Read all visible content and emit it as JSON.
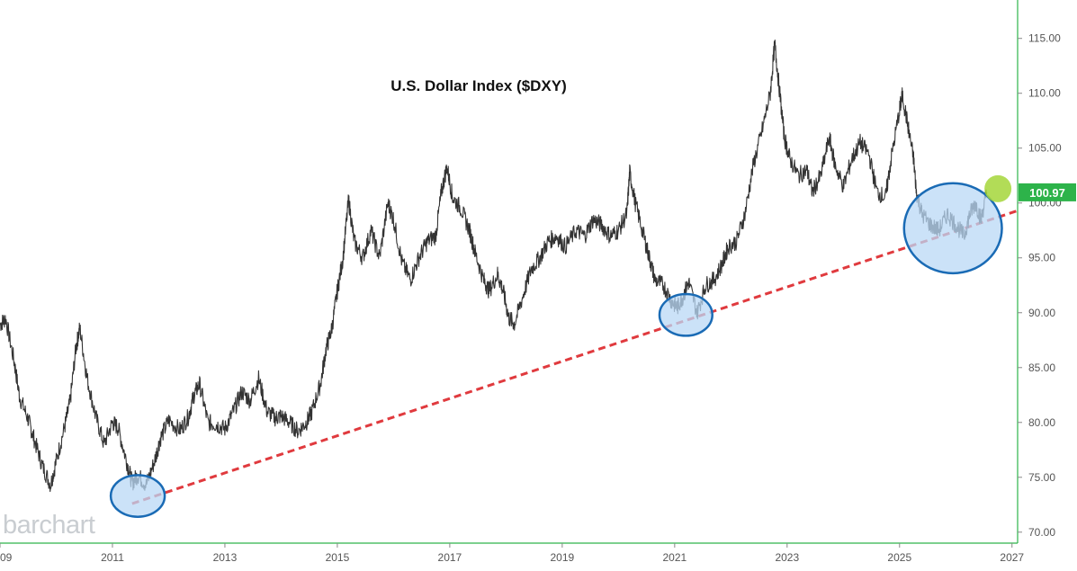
{
  "chart_data": {
    "type": "line",
    "title": "U.S. Dollar Index ($DXY)",
    "xlabel": "",
    "ylabel": "",
    "xlim": [
      2009.0,
      2027.1
    ],
    "ylim": [
      69.0,
      118.5
    ],
    "x_ticks": [
      "09",
      "2011",
      "2013",
      "2015",
      "2017",
      "2019",
      "2021",
      "2023",
      "2025",
      "2027"
    ],
    "y_ticks": [
      "70.00",
      "75.00",
      "80.00",
      "85.00",
      "90.00",
      "95.00",
      "100.00",
      "105.00",
      "110.00",
      "115.00"
    ],
    "last_price_label": "100.97",
    "grid": false,
    "colors": {
      "price": "#333333",
      "trendline": "#e03a3e",
      "price_badge": "#2db34a",
      "highlight_fill": "#b9d8f5",
      "highlight_stroke": "#1a6bb5",
      "current_marker": "#a4d63a"
    },
    "series": [
      {
        "values": [
          [
            2009.0,
            88.9
          ],
          [
            2009.1,
            89.5
          ],
          [
            2009.25,
            85.6
          ],
          [
            2009.35,
            82.3
          ],
          [
            2009.5,
            80.3
          ],
          [
            2009.6,
            78.6
          ],
          [
            2009.75,
            76.1
          ],
          [
            2009.9,
            74.3
          ],
          [
            2010.0,
            76.5
          ],
          [
            2010.15,
            79.6
          ],
          [
            2010.25,
            82.0
          ],
          [
            2010.35,
            86.8
          ],
          [
            2010.42,
            88.6
          ],
          [
            2010.55,
            84.0
          ],
          [
            2010.7,
            80.6
          ],
          [
            2010.85,
            78.0
          ],
          [
            2011.0,
            80.0
          ],
          [
            2011.1,
            79.5
          ],
          [
            2011.25,
            76.5
          ],
          [
            2011.35,
            74.5
          ],
          [
            2011.45,
            75.2
          ],
          [
            2011.6,
            74.3
          ],
          [
            2011.75,
            76.5
          ],
          [
            2011.85,
            78.5
          ],
          [
            2012.0,
            80.2
          ],
          [
            2012.2,
            79.3
          ],
          [
            2012.35,
            80.5
          ],
          [
            2012.45,
            82.5
          ],
          [
            2012.55,
            83.5
          ],
          [
            2012.7,
            80.0
          ],
          [
            2012.85,
            79.8
          ],
          [
            2013.0,
            79.4
          ],
          [
            2013.15,
            81.0
          ],
          [
            2013.3,
            82.8
          ],
          [
            2013.45,
            82.0
          ],
          [
            2013.6,
            84.0
          ],
          [
            2013.75,
            81.0
          ],
          [
            2013.9,
            80.4
          ],
          [
            2014.0,
            80.6
          ],
          [
            2014.15,
            80.0
          ],
          [
            2014.3,
            79.2
          ],
          [
            2014.45,
            80.0
          ],
          [
            2014.55,
            81.0
          ],
          [
            2014.7,
            83.5
          ],
          [
            2014.8,
            86.7
          ],
          [
            2014.9,
            88.5
          ],
          [
            2015.0,
            92.0
          ],
          [
            2015.1,
            95.0
          ],
          [
            2015.2,
            100.3
          ],
          [
            2015.3,
            96.5
          ],
          [
            2015.45,
            95.0
          ],
          [
            2015.6,
            97.5
          ],
          [
            2015.75,
            95.0
          ],
          [
            2015.9,
            100.0
          ],
          [
            2016.0,
            98.5
          ],
          [
            2016.15,
            94.6
          ],
          [
            2016.3,
            93.0
          ],
          [
            2016.45,
            95.0
          ],
          [
            2016.6,
            96.5
          ],
          [
            2016.75,
            97.0
          ],
          [
            2016.85,
            101.0
          ],
          [
            2016.95,
            103.3
          ],
          [
            2017.05,
            100.5
          ],
          [
            2017.2,
            99.5
          ],
          [
            2017.35,
            97.5
          ],
          [
            2017.45,
            95.5
          ],
          [
            2017.6,
            93.0
          ],
          [
            2017.7,
            92.0
          ],
          [
            2017.85,
            93.5
          ],
          [
            2017.95,
            92.0
          ],
          [
            2018.05,
            89.5
          ],
          [
            2018.15,
            89.0
          ],
          [
            2018.3,
            91.5
          ],
          [
            2018.45,
            94.0
          ],
          [
            2018.6,
            95.0
          ],
          [
            2018.75,
            96.5
          ],
          [
            2018.9,
            97.0
          ],
          [
            2019.05,
            96.0
          ],
          [
            2019.25,
            97.5
          ],
          [
            2019.4,
            97.0
          ],
          [
            2019.55,
            98.5
          ],
          [
            2019.7,
            98.0
          ],
          [
            2019.85,
            97.0
          ],
          [
            2020.0,
            97.5
          ],
          [
            2020.15,
            99.0
          ],
          [
            2020.2,
            102.8
          ],
          [
            2020.3,
            100.0
          ],
          [
            2020.45,
            97.0
          ],
          [
            2020.55,
            95.0
          ],
          [
            2020.65,
            93.0
          ],
          [
            2020.8,
            92.5
          ],
          [
            2020.95,
            91.0
          ],
          [
            2021.05,
            90.5
          ],
          [
            2021.15,
            91.5
          ],
          [
            2021.25,
            92.8
          ],
          [
            2021.4,
            90.0
          ],
          [
            2021.55,
            92.5
          ],
          [
            2021.7,
            93.0
          ],
          [
            2021.85,
            94.5
          ],
          [
            2021.95,
            96.0
          ],
          [
            2022.1,
            96.5
          ],
          [
            2022.25,
            99.0
          ],
          [
            2022.4,
            103.5
          ],
          [
            2022.55,
            106.5
          ],
          [
            2022.7,
            110.0
          ],
          [
            2022.78,
            114.5
          ],
          [
            2022.85,
            111.0
          ],
          [
            2022.95,
            106.0
          ],
          [
            2023.05,
            104.0
          ],
          [
            2023.2,
            102.5
          ],
          [
            2023.35,
            103.0
          ],
          [
            2023.45,
            101.0
          ],
          [
            2023.6,
            102.5
          ],
          [
            2023.75,
            106.0
          ],
          [
            2023.85,
            103.5
          ],
          [
            2024.0,
            101.5
          ],
          [
            2024.15,
            104.0
          ],
          [
            2024.3,
            105.5
          ],
          [
            2024.45,
            104.5
          ],
          [
            2024.6,
            101.0
          ],
          [
            2024.75,
            100.5
          ],
          [
            2024.85,
            104.0
          ],
          [
            2025.0,
            108.5
          ],
          [
            2025.05,
            109.8
          ],
          [
            2025.15,
            107.0
          ],
          [
            2025.25,
            104.0
          ],
          [
            2025.3,
            101.0
          ],
          [
            2025.4,
            99.0
          ],
          [
            2025.55,
            98.0
          ],
          [
            2025.7,
            97.5
          ],
          [
            2025.85,
            99.0
          ],
          [
            2026.0,
            98.0
          ],
          [
            2026.15,
            97.0
          ],
          [
            2026.25,
            99.0
          ],
          [
            2026.35,
            100.0
          ],
          [
            2026.45,
            98.5
          ],
          [
            2026.55,
            100.97
          ]
        ]
      }
    ],
    "trendline": [
      [
        2011.35,
        72.6
      ],
      [
        2027.1,
        99.3
      ]
    ],
    "highlight_circles": [
      {
        "x": 2011.45,
        "y": 73.3,
        "rx_years": 0.48,
        "ry_units": 1.9
      },
      {
        "x": 2021.2,
        "y": 89.8,
        "rx_years": 0.47,
        "ry_units": 1.9
      },
      {
        "x": 2025.95,
        "y": 97.7,
        "rx_years": 0.87,
        "ry_units": 4.1
      }
    ],
    "current_marker": {
      "x": 2026.75,
      "y": 101.3
    }
  },
  "branding": {
    "watermark": "barchart"
  }
}
